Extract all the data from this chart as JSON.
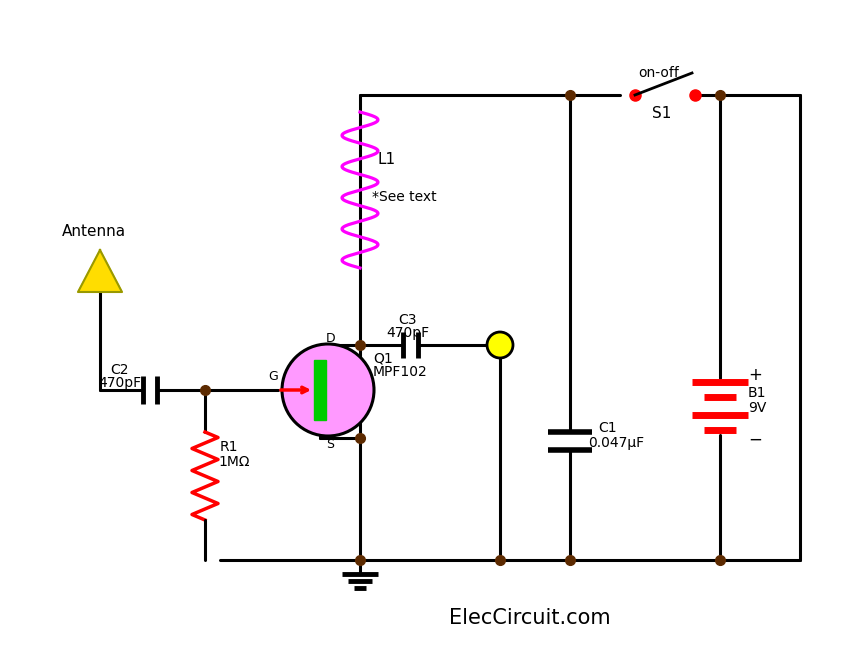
{
  "background_color": "#ffffff",
  "wire_color": "#000000",
  "dot_color": "#5c2a00",
  "labels": {
    "antenna": "Antenna",
    "C2": "C2",
    "C2_val": "470pF",
    "R1": "R1",
    "R1_val": "1MΩ",
    "L1": "L1",
    "L1_note": "*See text",
    "C3": "C3",
    "C3_val": "470pF",
    "Q1": "Q1",
    "Q1_val": "MPF102",
    "C1": "C1",
    "C1_val": "0.047μF",
    "B1": "B1",
    "B1_val": "9V",
    "S1": "S1",
    "S1_label": "on-off",
    "website": "ElecCircuit.com"
  }
}
